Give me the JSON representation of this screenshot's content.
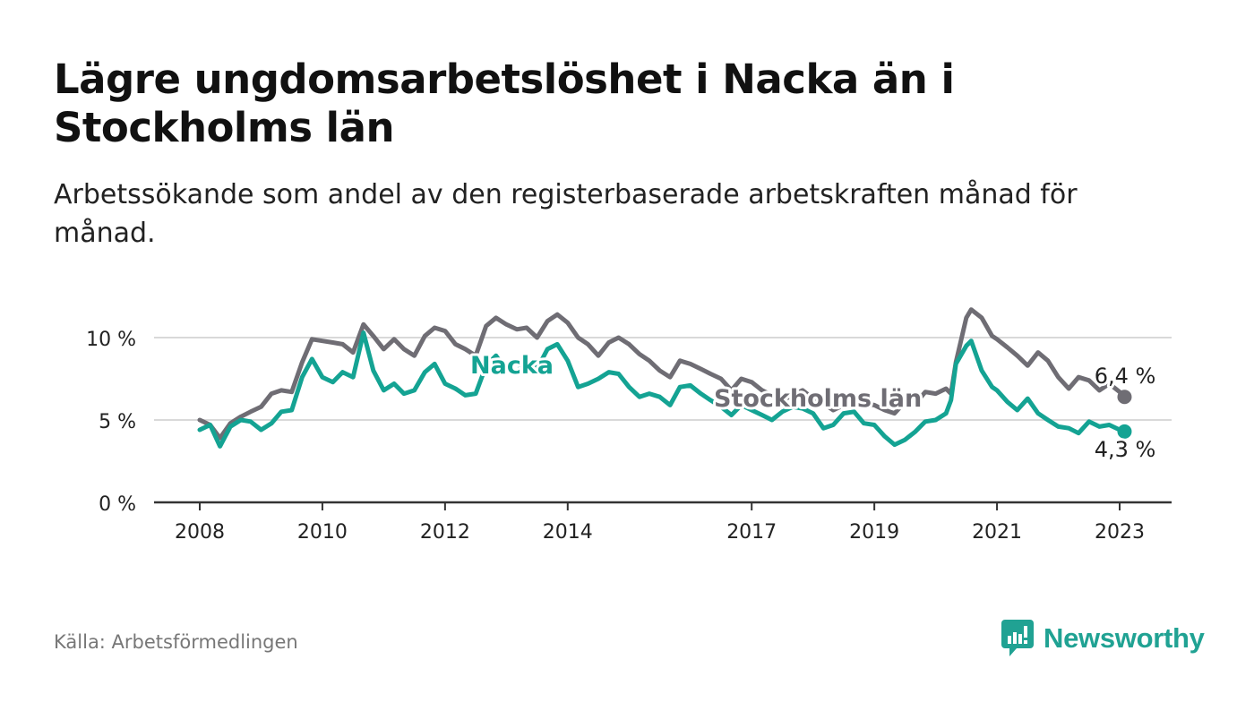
{
  "title": "Lägre ungdomsarbetslöshet i Nacka än i Stockholms län",
  "subtitle": "Arbetssökande som andel av den registerbaserade arbetskraften månad för månad.",
  "source": "Källa: Arbetsförmedlingen",
  "brand": {
    "name": "Newsworthy",
    "icon": "newsworthy-logo-icon",
    "color": "#20a293"
  },
  "colors": {
    "nacka": "#14a393",
    "stockholm": "#6f6d74",
    "grid": "#d9d9d9",
    "axis": "#333333"
  },
  "chart_data": {
    "type": "line",
    "title": "Lägre ungdomsarbetslöshet i Nacka än i Stockholms län",
    "xlabel": "",
    "ylabel": "",
    "xlim": [
      2008.0,
      2023.15
    ],
    "ylim": [
      0,
      12.5
    ],
    "x_ticks": [
      2008,
      2010,
      2012,
      2014,
      2017,
      2019,
      2021,
      2023
    ],
    "x_tick_labels": [
      "2008",
      "2010",
      "2012",
      "2014",
      "2017",
      "2019",
      "2021",
      "2023"
    ],
    "y_ticks": [
      0,
      5,
      10
    ],
    "y_tick_labels": [
      "0 %",
      "5 %",
      "10 %"
    ],
    "grid": true,
    "series": [
      {
        "name": "Stockholms län",
        "label": "Stockholms län",
        "color": "#6f6d74",
        "end_label": "6,4 %",
        "points": [
          [
            2008.0,
            5.0
          ],
          [
            2008.17,
            4.7
          ],
          [
            2008.33,
            3.9
          ],
          [
            2008.5,
            4.8
          ],
          [
            2008.67,
            5.2
          ],
          [
            2008.83,
            5.5
          ],
          [
            2009.0,
            5.8
          ],
          [
            2009.17,
            6.6
          ],
          [
            2009.33,
            6.8
          ],
          [
            2009.5,
            6.7
          ],
          [
            2009.67,
            8.5
          ],
          [
            2009.83,
            9.9
          ],
          [
            2010.0,
            9.8
          ],
          [
            2010.17,
            9.7
          ],
          [
            2010.33,
            9.6
          ],
          [
            2010.5,
            9.1
          ],
          [
            2010.67,
            10.8
          ],
          [
            2010.83,
            10.1
          ],
          [
            2011.0,
            9.3
          ],
          [
            2011.17,
            9.9
          ],
          [
            2011.33,
            9.3
          ],
          [
            2011.5,
            8.9
          ],
          [
            2011.67,
            10.1
          ],
          [
            2011.83,
            10.6
          ],
          [
            2012.0,
            10.4
          ],
          [
            2012.17,
            9.6
          ],
          [
            2012.33,
            9.3
          ],
          [
            2012.5,
            8.9
          ],
          [
            2012.67,
            10.7
          ],
          [
            2012.83,
            11.2
          ],
          [
            2013.0,
            10.8
          ],
          [
            2013.17,
            10.5
          ],
          [
            2013.33,
            10.6
          ],
          [
            2013.5,
            10.0
          ],
          [
            2013.67,
            11.0
          ],
          [
            2013.83,
            11.4
          ],
          [
            2014.0,
            10.9
          ],
          [
            2014.17,
            10.0
          ],
          [
            2014.33,
            9.6
          ],
          [
            2014.5,
            8.9
          ],
          [
            2014.67,
            9.7
          ],
          [
            2014.83,
            10.0
          ],
          [
            2015.0,
            9.6
          ],
          [
            2015.17,
            9.0
          ],
          [
            2015.33,
            8.6
          ],
          [
            2015.5,
            8.0
          ],
          [
            2015.67,
            7.6
          ],
          [
            2015.83,
            8.6
          ],
          [
            2016.0,
            8.4
          ],
          [
            2016.17,
            8.1
          ],
          [
            2016.33,
            7.8
          ],
          [
            2016.5,
            7.5
          ],
          [
            2016.67,
            6.8
          ],
          [
            2016.83,
            7.5
          ],
          [
            2017.0,
            7.3
          ],
          [
            2017.17,
            6.8
          ],
          [
            2017.33,
            6.5
          ],
          [
            2017.5,
            6.2
          ],
          [
            2017.67,
            6.5
          ],
          [
            2017.83,
            6.8
          ],
          [
            2018.0,
            6.3
          ],
          [
            2018.17,
            6.0
          ],
          [
            2018.33,
            5.6
          ],
          [
            2018.5,
            5.9
          ],
          [
            2018.67,
            6.3
          ],
          [
            2018.83,
            6.0
          ],
          [
            2019.0,
            5.9
          ],
          [
            2019.17,
            5.6
          ],
          [
            2019.33,
            5.4
          ],
          [
            2019.5,
            6.1
          ],
          [
            2019.67,
            6.0
          ],
          [
            2019.83,
            6.7
          ],
          [
            2020.0,
            6.6
          ],
          [
            2020.17,
            6.9
          ],
          [
            2020.25,
            6.6
          ],
          [
            2020.33,
            8.5
          ],
          [
            2020.5,
            11.2
          ],
          [
            2020.58,
            11.7
          ],
          [
            2020.75,
            11.2
          ],
          [
            2020.92,
            10.1
          ],
          [
            2021.0,
            9.9
          ],
          [
            2021.17,
            9.4
          ],
          [
            2021.33,
            8.9
          ],
          [
            2021.5,
            8.3
          ],
          [
            2021.67,
            9.1
          ],
          [
            2021.83,
            8.6
          ],
          [
            2022.0,
            7.6
          ],
          [
            2022.17,
            6.9
          ],
          [
            2022.33,
            7.6
          ],
          [
            2022.5,
            7.4
          ],
          [
            2022.67,
            6.8
          ],
          [
            2022.83,
            7.2
          ],
          [
            2023.0,
            6.7
          ],
          [
            2023.08,
            6.4
          ]
        ]
      },
      {
        "name": "Nacka",
        "label": "Nacka",
        "color": "#14a393",
        "end_label": "4,3 %",
        "points": [
          [
            2008.0,
            4.4
          ],
          [
            2008.17,
            4.7
          ],
          [
            2008.33,
            3.4
          ],
          [
            2008.5,
            4.6
          ],
          [
            2008.67,
            5.0
          ],
          [
            2008.83,
            4.9
          ],
          [
            2009.0,
            4.4
          ],
          [
            2009.17,
            4.8
          ],
          [
            2009.33,
            5.5
          ],
          [
            2009.5,
            5.6
          ],
          [
            2009.67,
            7.6
          ],
          [
            2009.83,
            8.7
          ],
          [
            2010.0,
            7.6
          ],
          [
            2010.17,
            7.3
          ],
          [
            2010.33,
            7.9
          ],
          [
            2010.5,
            7.6
          ],
          [
            2010.67,
            10.3
          ],
          [
            2010.83,
            8.0
          ],
          [
            2011.0,
            6.8
          ],
          [
            2011.17,
            7.2
          ],
          [
            2011.33,
            6.6
          ],
          [
            2011.5,
            6.8
          ],
          [
            2011.67,
            7.9
          ],
          [
            2011.83,
            8.4
          ],
          [
            2012.0,
            7.2
          ],
          [
            2012.17,
            6.9
          ],
          [
            2012.33,
            6.5
          ],
          [
            2012.5,
            6.6
          ],
          [
            2012.67,
            8.3
          ],
          [
            2012.83,
            8.9
          ],
          [
            2013.0,
            8.0
          ],
          [
            2013.17,
            7.9
          ],
          [
            2013.33,
            8.6
          ],
          [
            2013.5,
            8.1
          ],
          [
            2013.67,
            9.3
          ],
          [
            2013.83,
            9.6
          ],
          [
            2014.0,
            8.6
          ],
          [
            2014.17,
            7.0
          ],
          [
            2014.33,
            7.2
          ],
          [
            2014.5,
            7.5
          ],
          [
            2014.67,
            7.9
          ],
          [
            2014.83,
            7.8
          ],
          [
            2015.0,
            7.0
          ],
          [
            2015.17,
            6.4
          ],
          [
            2015.33,
            6.6
          ],
          [
            2015.5,
            6.4
          ],
          [
            2015.67,
            5.9
          ],
          [
            2015.83,
            7.0
          ],
          [
            2016.0,
            7.1
          ],
          [
            2016.17,
            6.6
          ],
          [
            2016.33,
            6.2
          ],
          [
            2016.5,
            5.8
          ],
          [
            2016.67,
            5.3
          ],
          [
            2016.83,
            5.9
          ],
          [
            2017.0,
            5.6
          ],
          [
            2017.17,
            5.3
          ],
          [
            2017.33,
            5.0
          ],
          [
            2017.5,
            5.5
          ],
          [
            2017.67,
            5.8
          ],
          [
            2017.83,
            5.7
          ],
          [
            2018.0,
            5.4
          ],
          [
            2018.17,
            4.5
          ],
          [
            2018.33,
            4.7
          ],
          [
            2018.5,
            5.4
          ],
          [
            2018.67,
            5.5
          ],
          [
            2018.83,
            4.8
          ],
          [
            2019.0,
            4.7
          ],
          [
            2019.17,
            4.0
          ],
          [
            2019.33,
            3.5
          ],
          [
            2019.5,
            3.8
          ],
          [
            2019.67,
            4.3
          ],
          [
            2019.83,
            4.9
          ],
          [
            2020.0,
            5.0
          ],
          [
            2020.17,
            5.4
          ],
          [
            2020.25,
            6.2
          ],
          [
            2020.33,
            8.4
          ],
          [
            2020.5,
            9.5
          ],
          [
            2020.58,
            9.8
          ],
          [
            2020.75,
            8.0
          ],
          [
            2020.92,
            7.0
          ],
          [
            2021.0,
            6.8
          ],
          [
            2021.17,
            6.1
          ],
          [
            2021.33,
            5.6
          ],
          [
            2021.5,
            6.3
          ],
          [
            2021.67,
            5.4
          ],
          [
            2021.83,
            5.0
          ],
          [
            2022.0,
            4.6
          ],
          [
            2022.17,
            4.5
          ],
          [
            2022.33,
            4.2
          ],
          [
            2022.5,
            4.9
          ],
          [
            2022.67,
            4.6
          ],
          [
            2022.83,
            4.7
          ],
          [
            2023.0,
            4.4
          ],
          [
            2023.08,
            4.3
          ]
        ]
      }
    ]
  }
}
